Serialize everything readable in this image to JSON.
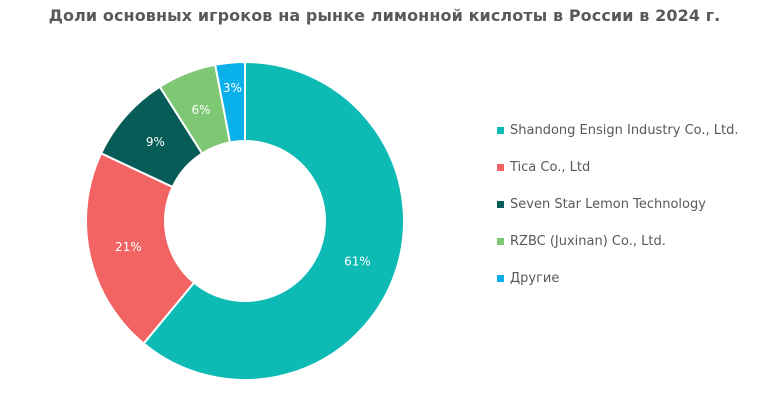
{
  "title": "Доли основных игроков на рынке лимонной кислоты в России в 2024 г.",
  "chart_data": {
    "type": "pie",
    "variant": "donut",
    "title": "Доли основных игроков на рынке лимонной кислоты в России в 2024 г.",
    "categories": [
      "Shandong Ensign Industry Co., Ltd.",
      "Tica Co., Ltd",
      "Seven Star Lemon Technology",
      "RZBC (Juxinan) Co., Ltd.",
      "Другие"
    ],
    "values": [
      61,
      21,
      9,
      6,
      3
    ],
    "labels": [
      "61%",
      "21%",
      "9%",
      "6%",
      "3%"
    ],
    "unit": "%",
    "colors": [
      "#0dbab4",
      "#f26464",
      "#065c56",
      "#7ec774",
      "#09b0ea"
    ],
    "start_angle": "12 o'clock, clockwise",
    "legend_position": "right"
  },
  "legend": [
    {
      "label": "Shandong Ensign Industry Co., Ltd.",
      "color": "#0dbab4"
    },
    {
      "label": "Tica Co., Ltd",
      "color": "#f26464"
    },
    {
      "label": "Seven Star Lemon Technology",
      "color": "#065c56"
    },
    {
      "label": "RZBC (Juxinan) Co., Ltd.",
      "color": "#7ec774"
    },
    {
      "label": "Другие",
      "color": "#09b0ea"
    }
  ]
}
